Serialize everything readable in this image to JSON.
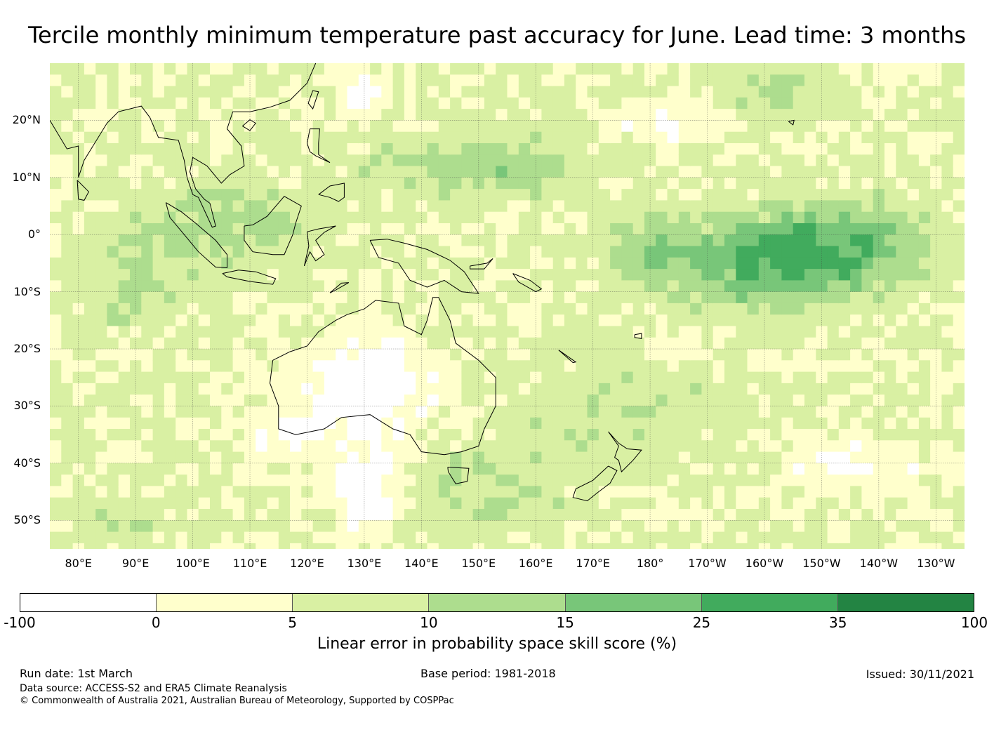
{
  "title": "Tercile monthly minimum temperature past accuracy for June. Lead time: 3 months",
  "map": {
    "extent": {
      "lon_min": 75,
      "lon_max": 235,
      "lat_min": -55,
      "lat_max": 30
    },
    "lat_ticks": [
      {
        "value": 20,
        "label": "20°N"
      },
      {
        "value": 10,
        "label": "10°N"
      },
      {
        "value": 0,
        "label": "0°"
      },
      {
        "value": -10,
        "label": "10°S"
      },
      {
        "value": -20,
        "label": "20°S"
      },
      {
        "value": -30,
        "label": "30°S"
      },
      {
        "value": -40,
        "label": "40°S"
      },
      {
        "value": -50,
        "label": "50°S"
      }
    ],
    "lon_ticks": [
      {
        "value": 80,
        "label": "80°E"
      },
      {
        "value": 90,
        "label": "90°E"
      },
      {
        "value": 100,
        "label": "100°E"
      },
      {
        "value": 110,
        "label": "110°E"
      },
      {
        "value": 120,
        "label": "120°E"
      },
      {
        "value": 130,
        "label": "130°E"
      },
      {
        "value": 140,
        "label": "140°E"
      },
      {
        "value": 150,
        "label": "150°E"
      },
      {
        "value": 160,
        "label": "160°E"
      },
      {
        "value": 170,
        "label": "170°E"
      },
      {
        "value": 180,
        "label": "180°"
      },
      {
        "value": 190,
        "label": "170°W"
      },
      {
        "value": 200,
        "label": "160°W"
      },
      {
        "value": 210,
        "label": "150°W"
      },
      {
        "value": 220,
        "label": "140°W"
      },
      {
        "value": 230,
        "label": "130°W"
      }
    ]
  },
  "colorbar": {
    "ticks": [
      "-100",
      "0",
      "5",
      "10",
      "15",
      "25",
      "35",
      "100"
    ],
    "colors": [
      "#ffffff",
      "#ffffcc",
      "#d9f0a3",
      "#addd8e",
      "#78c679",
      "#41ab5d",
      "#238443"
    ],
    "label": "Linear error in probability space skill score (%)"
  },
  "footer": {
    "run_date": "Run date: 1st March",
    "base_period": "Base period: 1981-2018",
    "issued": "Issued: 30/11/2021",
    "data_source": "Data source: ACCESS-S2 and ERA5 Climate Reanalysis",
    "copyright": "© Commonwealth of Australia 2021, Australian Bureau of Meteorology, Supported by COSPPac"
  }
}
